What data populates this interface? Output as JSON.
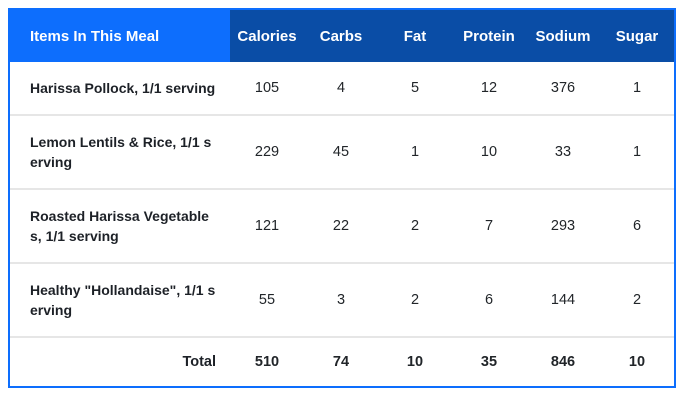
{
  "colors": {
    "header_first_col_bg": "#0d6efd",
    "header_rest_bg": "#0a4da6",
    "outer_border": "#0d6efd",
    "row_divider": "#e6e6e6",
    "body_text": "#212529",
    "header_text": "#ffffff"
  },
  "table": {
    "header": {
      "items_label": "Items In This Meal",
      "columns": [
        "Calories",
        "Carbs",
        "Fat",
        "Protein",
        "Sodium",
        "Sugar"
      ]
    },
    "rows": [
      {
        "name": "Harissa Pollock, 1/1 serving",
        "values": [
          "105",
          "4",
          "5",
          "12",
          "376",
          "1"
        ]
      },
      {
        "name": "Lemon Lentils & Rice, 1/1 serving",
        "values": [
          "229",
          "45",
          "1",
          "10",
          "33",
          "1"
        ]
      },
      {
        "name": "Roasted Harissa Vegetables, 1/1 serving",
        "values": [
          "121",
          "22",
          "2",
          "7",
          "293",
          "6"
        ]
      },
      {
        "name": "Healthy \"Hollandaise\", 1/1 serving",
        "values": [
          "55",
          "3",
          "2",
          "6",
          "144",
          "2"
        ]
      }
    ],
    "total": {
      "label": "Total",
      "values": [
        "510",
        "74",
        "10",
        "35",
        "846",
        "10"
      ]
    }
  }
}
